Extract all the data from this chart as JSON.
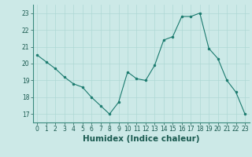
{
  "x": [
    0,
    1,
    2,
    3,
    4,
    5,
    6,
    7,
    8,
    9,
    10,
    11,
    12,
    13,
    14,
    15,
    16,
    17,
    18,
    19,
    20,
    21,
    22,
    23
  ],
  "y": [
    20.5,
    20.1,
    19.7,
    19.2,
    18.8,
    18.6,
    18.0,
    17.5,
    17.0,
    17.7,
    19.5,
    19.1,
    19.0,
    19.9,
    21.4,
    21.6,
    22.8,
    22.8,
    23.0,
    20.9,
    20.3,
    19.0,
    18.3,
    17.0
  ],
  "xlabel": "Humidex (Indice chaleur)",
  "ylim": [
    16.5,
    23.5
  ],
  "xlim": [
    -0.5,
    23.5
  ],
  "yticks": [
    17,
    18,
    19,
    20,
    21,
    22,
    23
  ],
  "xticks": [
    0,
    1,
    2,
    3,
    4,
    5,
    6,
    7,
    8,
    9,
    10,
    11,
    12,
    13,
    14,
    15,
    16,
    17,
    18,
    19,
    20,
    21,
    22,
    23
  ],
  "line_color": "#1a7a6e",
  "marker_color": "#1a7a6e",
  "bg_color": "#cce9e7",
  "grid_color": "#afd8d5",
  "axis_bg": "#cce9e7",
  "tick_label_fontsize": 5.5,
  "xlabel_fontsize": 7.5,
  "spine_color": "#3a8a7e"
}
